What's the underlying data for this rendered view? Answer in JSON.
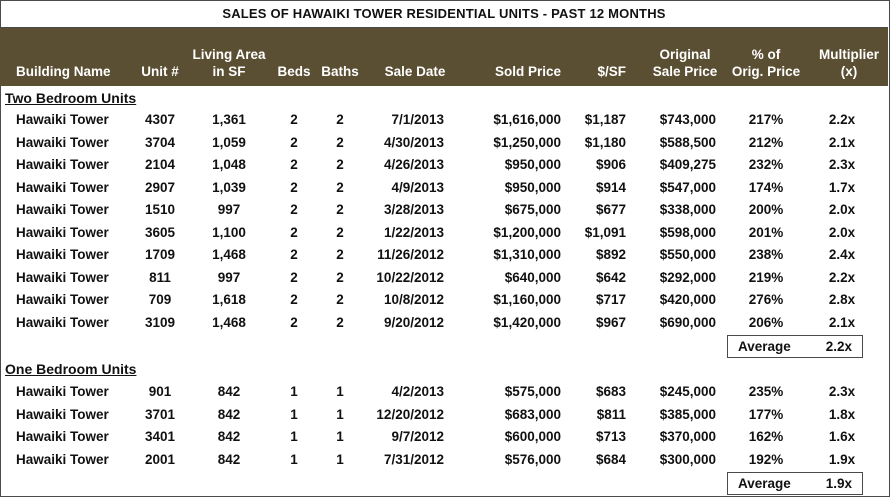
{
  "title": "SALES OF HAWAIKI TOWER RESIDENTIAL UNITS - PAST 12 MONTHS",
  "headers": {
    "building": "Building Name",
    "unit": "Unit #",
    "area": "Living Area\nin SF",
    "beds": "Beds",
    "baths": "Baths",
    "date": "Sale Date",
    "sold": "Sold Price",
    "psf": "$/SF",
    "orig": "Original\nSale Price",
    "pct": "% of\nOrig. Price",
    "mult": "Multiplier\n(x)"
  },
  "two_bedroom": {
    "label": "Two Bedroom Units",
    "rows": [
      {
        "building": "Hawaiki Tower",
        "unit": "4307",
        "area": "1,361",
        "beds": "2",
        "baths": "2",
        "date": "7/1/2013",
        "sold": "$1,616,000",
        "psf": "$1,187",
        "orig": "$743,000",
        "pct": "217%",
        "mult": "2.2x"
      },
      {
        "building": "Hawaiki Tower",
        "unit": "3704",
        "area": "1,059",
        "beds": "2",
        "baths": "2",
        "date": "4/30/2013",
        "sold": "$1,250,000",
        "psf": "$1,180",
        "orig": "$588,500",
        "pct": "212%",
        "mult": "2.1x"
      },
      {
        "building": "Hawaiki Tower",
        "unit": "2104",
        "area": "1,048",
        "beds": "2",
        "baths": "2",
        "date": "4/26/2013",
        "sold": "$950,000",
        "psf": "$906",
        "orig": "$409,275",
        "pct": "232%",
        "mult": "2.3x"
      },
      {
        "building": "Hawaiki Tower",
        "unit": "2907",
        "area": "1,039",
        "beds": "2",
        "baths": "2",
        "date": "4/9/2013",
        "sold": "$950,000",
        "psf": "$914",
        "orig": "$547,000",
        "pct": "174%",
        "mult": "1.7x"
      },
      {
        "building": "Hawaiki Tower",
        "unit": "1510",
        "area": "997",
        "beds": "2",
        "baths": "2",
        "date": "3/28/2013",
        "sold": "$675,000",
        "psf": "$677",
        "orig": "$338,000",
        "pct": "200%",
        "mult": "2.0x"
      },
      {
        "building": "Hawaiki Tower",
        "unit": "3605",
        "area": "1,100",
        "beds": "2",
        "baths": "2",
        "date": "1/22/2013",
        "sold": "$1,200,000",
        "psf": "$1,091",
        "orig": "$598,000",
        "pct": "201%",
        "mult": "2.0x"
      },
      {
        "building": "Hawaiki Tower",
        "unit": "1709",
        "area": "1,468",
        "beds": "2",
        "baths": "2",
        "date": "11/26/2012",
        "sold": "$1,310,000",
        "psf": "$892",
        "orig": "$550,000",
        "pct": "238%",
        "mult": "2.4x"
      },
      {
        "building": "Hawaiki Tower",
        "unit": "811",
        "area": "997",
        "beds": "2",
        "baths": "2",
        "date": "10/22/2012",
        "sold": "$640,000",
        "psf": "$642",
        "orig": "$292,000",
        "pct": "219%",
        "mult": "2.2x"
      },
      {
        "building": "Hawaiki Tower",
        "unit": "709",
        "area": "1,618",
        "beds": "2",
        "baths": "2",
        "date": "10/8/2012",
        "sold": "$1,160,000",
        "psf": "$717",
        "orig": "$420,000",
        "pct": "276%",
        "mult": "2.8x"
      },
      {
        "building": "Hawaiki Tower",
        "unit": "3109",
        "area": "1,468",
        "beds": "2",
        "baths": "2",
        "date": "9/20/2012",
        "sold": "$1,420,000",
        "psf": "$967",
        "orig": "$690,000",
        "pct": "206%",
        "mult": "2.1x"
      }
    ],
    "average_label": "Average",
    "average_value": "2.2x"
  },
  "one_bedroom": {
    "label": "One Bedroom Units",
    "rows": [
      {
        "building": "Hawaiki Tower",
        "unit": "901",
        "area": "842",
        "beds": "1",
        "baths": "1",
        "date": "4/2/2013",
        "sold": "$575,000",
        "psf": "$683",
        "orig": "$245,000",
        "pct": "235%",
        "mult": "2.3x"
      },
      {
        "building": "Hawaiki Tower",
        "unit": "3701",
        "area": "842",
        "beds": "1",
        "baths": "1",
        "date": "12/20/2012",
        "sold": "$683,000",
        "psf": "$811",
        "orig": "$385,000",
        "pct": "177%",
        "mult": "1.8x"
      },
      {
        "building": "Hawaiki Tower",
        "unit": "3401",
        "area": "842",
        "beds": "1",
        "baths": "1",
        "date": "9/7/2012",
        "sold": "$600,000",
        "psf": "$713",
        "orig": "$370,000",
        "pct": "162%",
        "mult": "1.6x"
      },
      {
        "building": "Hawaiki Tower",
        "unit": "2001",
        "area": "842",
        "beds": "1",
        "baths": "1",
        "date": "7/31/2012",
        "sold": "$576,000",
        "psf": "$684",
        "orig": "$300,000",
        "pct": "192%",
        "mult": "1.9x"
      }
    ],
    "average_label": "Average",
    "average_value": "1.9x"
  },
  "colors": {
    "header_bg": "#5b4f33",
    "header_text": "#ffffff",
    "border": "#4a4a4a"
  }
}
